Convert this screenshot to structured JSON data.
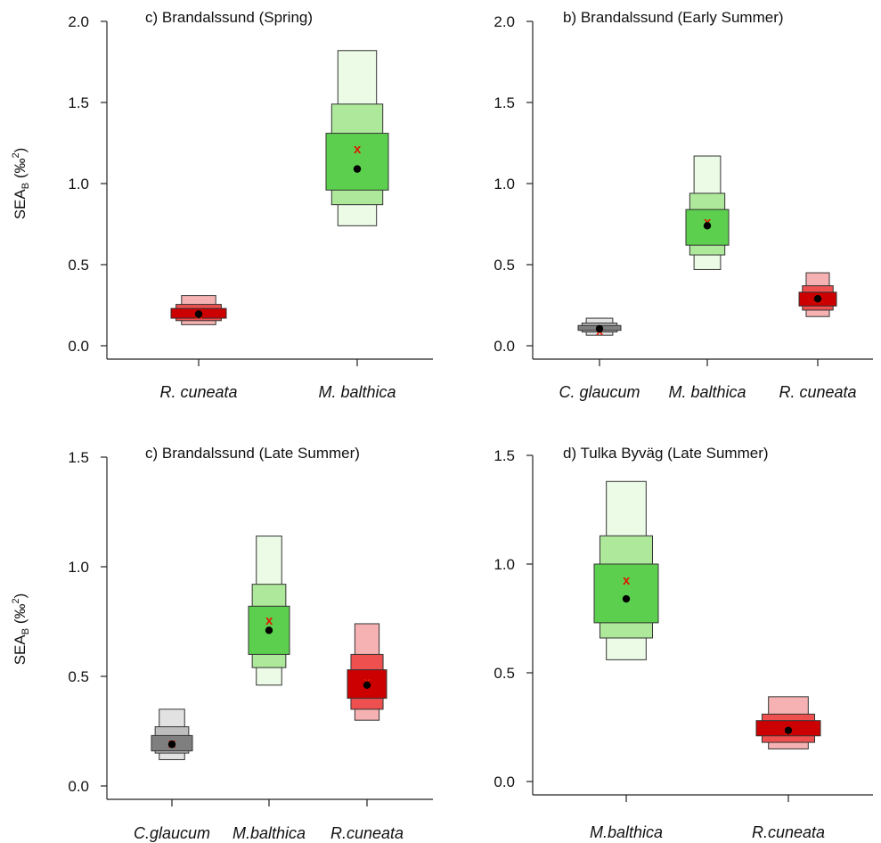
{
  "chart_data": [
    {
      "type": "box",
      "title": "c) Brandalssund (Spring)",
      "ylabel": "SEA",
      "ylabel_sub": "B",
      "ylabel_unit": " (‰",
      "ylabel_sup": "2",
      "ylabel_close": ")",
      "ylim": [
        0,
        2.0
      ],
      "yticks": [
        "0.0",
        "0.5",
        "1.0",
        "1.5",
        "2.0"
      ],
      "ytick_values": [
        0,
        0.5,
        1.0,
        1.5,
        2.0
      ],
      "categories": [
        "R. cuneata",
        "M. balthica"
      ],
      "series": [
        {
          "category": "R. cuneata",
          "color_family": "red",
          "ci95": [
            0.13,
            0.31
          ],
          "ci75": [
            0.155,
            0.255
          ],
          "ci50": [
            0.17,
            0.23
          ],
          "mode": 0.195,
          "ml": 0.2
        },
        {
          "category": "M. balthica",
          "color_family": "green",
          "ci95": [
            0.74,
            1.82
          ],
          "ci75": [
            0.87,
            1.49
          ],
          "ci50": [
            0.96,
            1.31
          ],
          "mode": 1.09,
          "ml": 1.22
        }
      ]
    },
    {
      "type": "box",
      "title": "b) Brandalssund (Early Summer)",
      "ylim": [
        0,
        2.0
      ],
      "yticks": [
        "0.0",
        "0.5",
        "1.0",
        "1.5",
        "2.0"
      ],
      "ytick_values": [
        0,
        0.5,
        1.0,
        1.5,
        2.0
      ],
      "categories": [
        "C. glaucum",
        "M. balthica",
        "R. cuneata"
      ],
      "series": [
        {
          "category": "C. glaucum",
          "color_family": "grey",
          "ci95": [
            0.065,
            0.17
          ],
          "ci75": [
            0.085,
            0.14
          ],
          "ci50": [
            0.095,
            0.125
          ],
          "mode": 0.105,
          "ml": 0.1
        },
        {
          "category": "M. balthica",
          "color_family": "green",
          "ci95": [
            0.47,
            1.17
          ],
          "ci75": [
            0.56,
            0.94
          ],
          "ci50": [
            0.62,
            0.84
          ],
          "mode": 0.74,
          "ml": 0.77
        },
        {
          "category": "R. cuneata",
          "color_family": "red",
          "ci95": [
            0.18,
            0.45
          ],
          "ci75": [
            0.22,
            0.37
          ],
          "ci50": [
            0.245,
            0.33
          ],
          "mode": 0.29,
          "ml": 0.3
        }
      ]
    },
    {
      "type": "box",
      "title": "c) Brandalssund (Late Summer)",
      "ylabel": "SEA",
      "ylabel_sub": "B",
      "ylabel_unit": " (‰",
      "ylabel_sup": "2",
      "ylabel_close": ")",
      "ylim": [
        0,
        1.5
      ],
      "yticks": [
        "0.0",
        "0.5",
        "1.0",
        "1.5"
      ],
      "ytick_values": [
        0,
        0.5,
        1.0,
        1.5
      ],
      "categories": [
        "C.glaucum",
        "M.balthica",
        "R.cuneata"
      ],
      "series": [
        {
          "category": "C.glaucum",
          "color_family": "grey",
          "ci95": [
            0.12,
            0.35
          ],
          "ci75": [
            0.15,
            0.27
          ],
          "ci50": [
            0.16,
            0.23
          ],
          "mode": 0.19,
          "ml": 0.2
        },
        {
          "category": "M.balthica",
          "color_family": "green",
          "ci95": [
            0.46,
            1.14
          ],
          "ci75": [
            0.54,
            0.92
          ],
          "ci50": [
            0.6,
            0.82
          ],
          "mode": 0.71,
          "ml": 0.76
        },
        {
          "category": "R.cuneata",
          "color_family": "red",
          "ci95": [
            0.3,
            0.74
          ],
          "ci75": [
            0.35,
            0.6
          ],
          "ci50": [
            0.4,
            0.53
          ],
          "mode": 0.46,
          "ml": 0.48
        }
      ]
    },
    {
      "type": "box",
      "title": "d) Tulka Byväg (Late Summer)",
      "ylim": [
        0,
        1.5
      ],
      "yticks": [
        "0.0",
        "0.5",
        "1.0",
        "1.5"
      ],
      "ytick_values": [
        0,
        0.5,
        1.0,
        1.5
      ],
      "categories": [
        "M.balthica",
        "R.cuneata"
      ],
      "series": [
        {
          "category": "M.balthica",
          "color_family": "green",
          "ci95": [
            0.56,
            1.38
          ],
          "ci75": [
            0.66,
            1.13
          ],
          "ci50": [
            0.73,
            1.0
          ],
          "mode": 0.84,
          "ml": 0.93
        },
        {
          "category": "R.cuneata",
          "color_family": "red",
          "ci95": [
            0.15,
            0.39
          ],
          "ci75": [
            0.18,
            0.31
          ],
          "ci50": [
            0.21,
            0.28
          ],
          "mode": 0.235,
          "ml": 0.24
        }
      ]
    }
  ],
  "colors": {
    "green": [
      "#ebfbe6",
      "#aee89a",
      "#5cd04e"
    ],
    "red": [
      "#f6b2b2",
      "#ee5050",
      "#cc0000"
    ],
    "grey": [
      "#e2e2e2",
      "#bdbdbd",
      "#7f7f7f"
    ],
    "ml_marker": "#dd1a00",
    "mode_marker": "#000000"
  }
}
